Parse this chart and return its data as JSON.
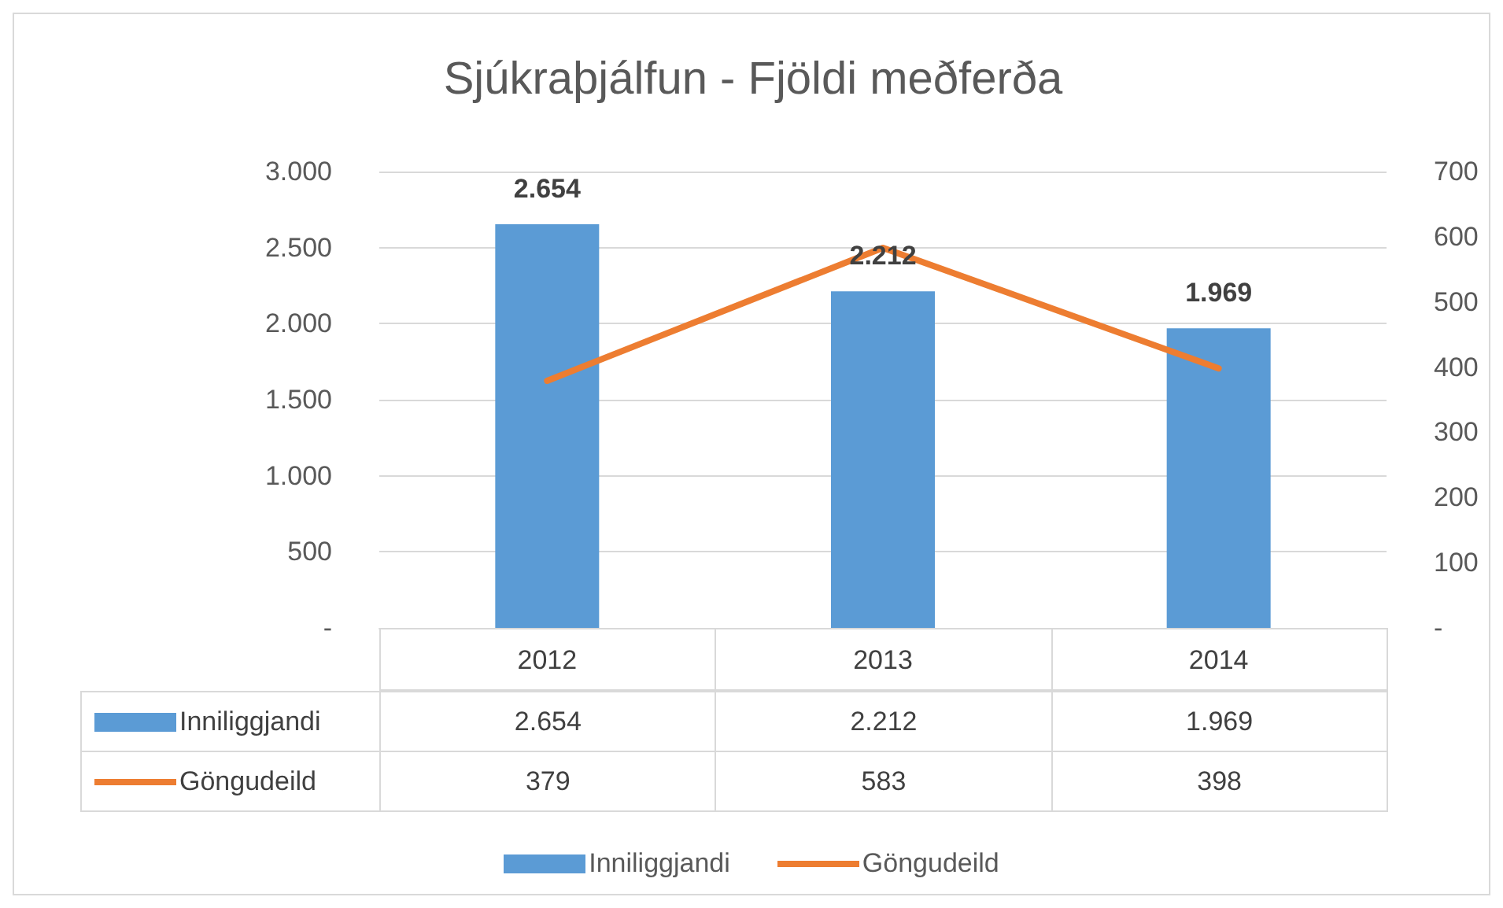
{
  "chart_data": {
    "type": "bar",
    "title": "Sjúkraþjálfun - Fjöldi meðferða",
    "categories": [
      "2012",
      "2013",
      "2014"
    ],
    "series": [
      {
        "name": "Inniliggjandi",
        "color": "#5b9bd5",
        "values": [
          2654,
          2212,
          1969
        ],
        "value_labels": [
          "2.654",
          "2.212",
          "1.969"
        ]
      },
      {
        "name": "Göngudeild",
        "type": "line",
        "axis": "y2",
        "color": "#ed7d31",
        "values": [
          379,
          583,
          398
        ],
        "value_labels": [
          "379",
          "583",
          "398"
        ]
      }
    ],
    "ylim": [
      0,
      3000
    ],
    "yticks": [
      {
        "value": 0,
        "label": "-"
      },
      500,
      {
        "value": 1000,
        "label": "1.000"
      },
      {
        "value": 1500,
        "label": "1.500"
      },
      {
        "value": 2000,
        "label": "2.000"
      },
      {
        "value": 2500,
        "label": "2.500"
      },
      {
        "value": 3000,
        "label": "3.000"
      }
    ],
    "y2lim": [
      0,
      700
    ],
    "y2ticks": [
      {
        "value": 0,
        "label": "-"
      },
      100,
      200,
      300,
      400,
      500,
      600,
      700
    ],
    "grid": "y",
    "legend": "bottom",
    "marker": "none",
    "line_style": "solid"
  }
}
